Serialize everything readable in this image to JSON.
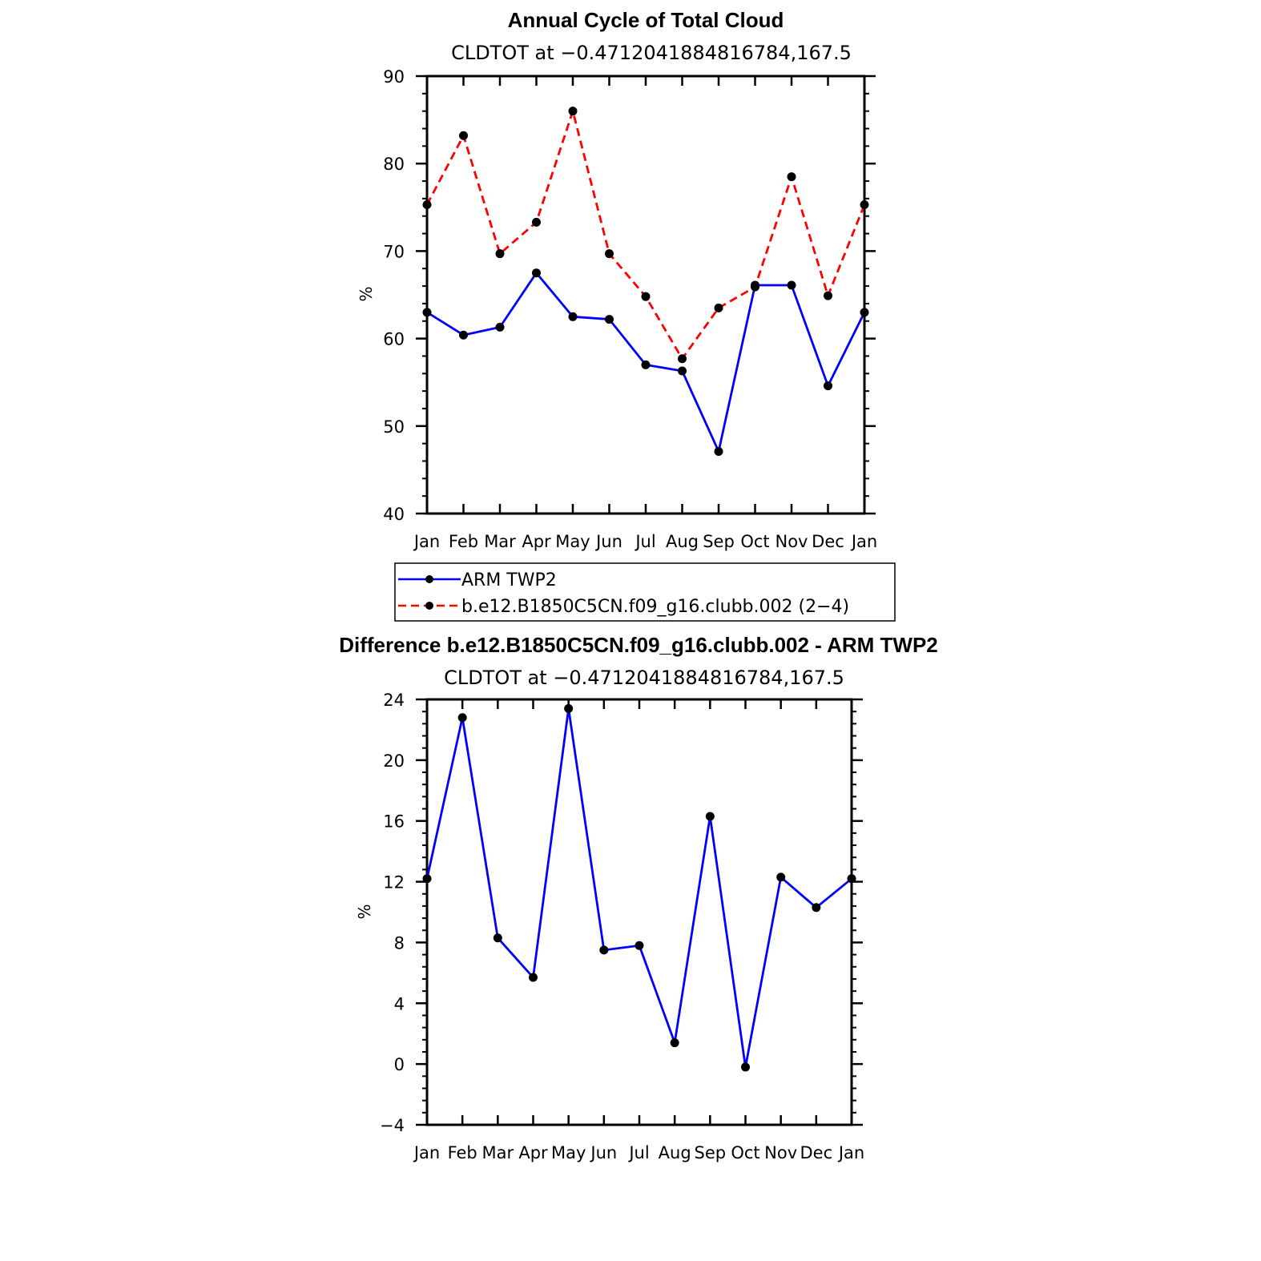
{
  "chart_data": [
    {
      "type": "line",
      "title": "Annual Cycle of Total Cloud",
      "subtitle": "CLDTOT at −0.4712041884816784,167.5",
      "ylabel": "%",
      "xlabel": "",
      "categories": [
        "Jan",
        "Feb",
        "Mar",
        "Apr",
        "May",
        "Jun",
        "Jul",
        "Aug",
        "Sep",
        "Oct",
        "Nov",
        "Dec",
        "Jan"
      ],
      "ylim": [
        40,
        90
      ],
      "yticks": [
        40,
        50,
        60,
        70,
        80,
        90
      ],
      "grid": false,
      "legend": "below",
      "series": [
        {
          "name": "ARM TWP2",
          "color": "#0000ff",
          "dash": "solid",
          "values": [
            63.0,
            60.4,
            61.3,
            67.5,
            62.5,
            62.2,
            57.0,
            56.3,
            47.1,
            66.1,
            66.1,
            54.6,
            63.0
          ]
        },
        {
          "name": "b.e12.B1850C5CN.f09_g16.clubb.002 (2−4)",
          "color": "#ff0000",
          "dash": "dashed",
          "values": [
            75.3,
            83.2,
            69.7,
            73.3,
            86.0,
            69.7,
            64.8,
            57.7,
            63.5,
            65.9,
            78.5,
            64.9,
            75.3
          ]
        }
      ]
    },
    {
      "type": "line",
      "title": "Difference b.e12.B1850C5CN.f09_g16.clubb.002 - ARM TWP2",
      "subtitle": "CLDTOT at −0.4712041884816784,167.5",
      "ylabel": "%",
      "xlabel": "",
      "categories": [
        "Jan",
        "Feb",
        "Mar",
        "Apr",
        "May",
        "Jun",
        "Jul",
        "Aug",
        "Sep",
        "Oct",
        "Nov",
        "Dec",
        "Jan"
      ],
      "ylim": [
        -4,
        24
      ],
      "yticks": [
        -4,
        0,
        4,
        8,
        12,
        16,
        20,
        24
      ],
      "grid": false,
      "series": [
        {
          "color": "#0000ff",
          "dash": "solid",
          "values": [
            12.2,
            22.8,
            8.3,
            5.7,
            23.4,
            7.5,
            7.8,
            1.4,
            16.3,
            -0.2,
            12.3,
            10.3,
            12.2
          ]
        }
      ]
    }
  ]
}
